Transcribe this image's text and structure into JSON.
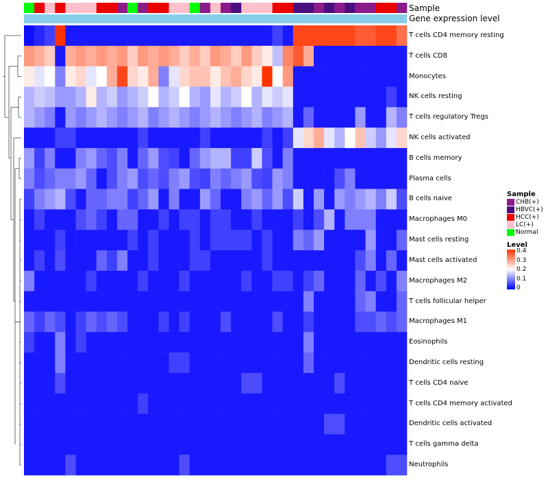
{
  "colors": {
    "CHB": "#8B1A8B",
    "HBVC": "#4B0E7E",
    "HCC": "#EE0000",
    "LC": "#FFC0CB",
    "Normal": "#00FF00",
    "gene_level": "#87CEEB",
    "low": "#0000FF",
    "mid": "#FFFFFF",
    "high": "#FF3300"
  },
  "annotation": {
    "sample_label": "Sample",
    "gene_label": "Gene expression level"
  },
  "legend": {
    "sample_title": "Sample",
    "sample_items": [
      {
        "label": "CHB(+)",
        "key": "CHB"
      },
      {
        "label": "HBVC(+)",
        "key": "HBVC"
      },
      {
        "label": "HCC(+)",
        "key": "HCC"
      },
      {
        "label": "LC(+)",
        "key": "LC"
      },
      {
        "label": "Normal",
        "key": "Normal"
      }
    ],
    "level_title": "Level",
    "level_ticks": [
      "0.4",
      "0.3",
      "0.2",
      "0.1",
      "0"
    ]
  },
  "chart_data": {
    "type": "heatmap",
    "title": "",
    "value_range": [
      0,
      0.4
    ],
    "sample_groups": [
      "Normal",
      "HCC",
      "LC",
      "HCC",
      "LC",
      "LC",
      "LC",
      "HCC",
      "HCC",
      "CHB",
      "Normal",
      "CHB",
      "HCC",
      "HCC",
      "LC",
      "LC",
      "Normal",
      "CHB",
      "LC",
      "CHB",
      "HBVC",
      "LC",
      "LC",
      "LC",
      "HCC",
      "HCC",
      "HBVC",
      "HBVC",
      "CHB",
      "HBVC",
      "CHB",
      "HBVC",
      "CHB",
      "CHB",
      "HCC",
      "HCC",
      "CHB"
    ],
    "rows": [
      "T cells CD4 memory resting",
      "T cells CD8",
      "Monocytes",
      "NK cells resting",
      "T cells regulatory  Tregs",
      "NK cells activated",
      "B cells memory",
      "Plasma cells",
      "B cells naive",
      "Macrophages M0",
      "Mast cells resting",
      "Mast cells activated",
      "Macrophages M2",
      "T cells follicular helper",
      "Macrophages M1",
      "Eosinophils",
      "Dendritic cells resting",
      "T cells CD4 naive",
      "T cells CD4 memory activated",
      "Dendritic cells activated",
      "T cells gamma delta",
      "Neutrophils"
    ],
    "values": [
      [
        0.01,
        0.03,
        0.05,
        0.4,
        0.02,
        0.02,
        0.02,
        0.02,
        0.02,
        0.02,
        0.02,
        0.02,
        0.02,
        0.02,
        0.02,
        0.02,
        0.02,
        0.02,
        0.02,
        0.02,
        0.02,
        0.02,
        0.02,
        0.02,
        0.05,
        0.02,
        0.38,
        0.38,
        0.38,
        0.38,
        0.38,
        0.38,
        0.36,
        0.36,
        0.38,
        0.38,
        0.34
      ],
      [
        0.3,
        0.28,
        0.25,
        0.02,
        0.28,
        0.3,
        0.28,
        0.3,
        0.28,
        0.3,
        0.25,
        0.3,
        0.28,
        0.3,
        0.28,
        0.25,
        0.28,
        0.25,
        0.3,
        0.28,
        0.25,
        0.3,
        0.25,
        0.22,
        0.15,
        0.32,
        0.36,
        0.28,
        0.02,
        0.02,
        0.02,
        0.02,
        0.02,
        0.02,
        0.02,
        0.02,
        0.02
      ],
      [
        0.22,
        0.18,
        0.2,
        0.1,
        0.22,
        0.24,
        0.18,
        0.2,
        0.28,
        0.38,
        0.24,
        0.22,
        0.28,
        0.1,
        0.18,
        0.24,
        0.26,
        0.26,
        0.22,
        0.26,
        0.28,
        0.24,
        0.22,
        0.4,
        0.2,
        0.3,
        0.02,
        0.02,
        0.02,
        0.02,
        0.02,
        0.02,
        0.02,
        0.02,
        0.02,
        0.02,
        0.02
      ],
      [
        0.14,
        0.16,
        0.15,
        0.12,
        0.12,
        0.14,
        0.22,
        0.14,
        0.16,
        0.12,
        0.14,
        0.16,
        0.2,
        0.14,
        0.16,
        0.2,
        0.14,
        0.12,
        0.18,
        0.14,
        0.16,
        0.2,
        0.14,
        0.18,
        0.16,
        0.18,
        0.02,
        0.02,
        0.02,
        0.02,
        0.02,
        0.02,
        0.02,
        0.02,
        0.02,
        0.05,
        0.02
      ],
      [
        0.14,
        0.12,
        0.1,
        0.02,
        0.12,
        0.1,
        0.12,
        0.14,
        0.12,
        0.1,
        0.12,
        0.14,
        0.1,
        0.12,
        0.14,
        0.12,
        0.1,
        0.12,
        0.14,
        0.12,
        0.1,
        0.12,
        0.14,
        0.1,
        0.12,
        0.14,
        0.02,
        0.08,
        0.02,
        0.02,
        0.02,
        0.02,
        0.12,
        0.02,
        0.02,
        0.14,
        0.1
      ],
      [
        0.02,
        0.02,
        0.02,
        0.05,
        0.05,
        0.02,
        0.02,
        0.02,
        0.02,
        0.02,
        0.02,
        0.05,
        0.02,
        0.02,
        0.02,
        0.02,
        0.02,
        0.05,
        0.02,
        0.02,
        0.02,
        0.02,
        0.02,
        0.05,
        0.02,
        0.05,
        0.18,
        0.24,
        0.28,
        0.18,
        0.14,
        0.2,
        0.26,
        0.16,
        0.12,
        0.18,
        0.24
      ],
      [
        0.12,
        0.05,
        0.1,
        0.02,
        0.02,
        0.1,
        0.12,
        0.08,
        0.06,
        0.1,
        0.02,
        0.08,
        0.12,
        0.06,
        0.05,
        0.02,
        0.08,
        0.12,
        0.14,
        0.14,
        0.05,
        0.05,
        0.16,
        0.06,
        0.02,
        0.1,
        0.02,
        0.02,
        0.02,
        0.02,
        0.02,
        0.02,
        0.02,
        0.02,
        0.02,
        0.02,
        0.02
      ],
      [
        0.1,
        0.06,
        0.08,
        0.1,
        0.1,
        0.12,
        0.08,
        0.02,
        0.06,
        0.1,
        0.12,
        0.06,
        0.08,
        0.06,
        0.1,
        0.12,
        0.06,
        0.05,
        0.1,
        0.08,
        0.1,
        0.12,
        0.06,
        0.05,
        0.12,
        0.1,
        0.02,
        0.02,
        0.02,
        0.02,
        0.06,
        0.1,
        0.02,
        0.02,
        0.02,
        0.02,
        0.02
      ],
      [
        0.05,
        0.1,
        0.12,
        0.14,
        0.06,
        0.02,
        0.08,
        0.08,
        0.1,
        0.1,
        0.05,
        0.08,
        0.12,
        0.02,
        0.1,
        0.02,
        0.02,
        0.12,
        0.08,
        0.02,
        0.02,
        0.1,
        0.12,
        0.08,
        0.12,
        0.06,
        0.16,
        0.02,
        0.12,
        0.02,
        0.12,
        0.1,
        0.12,
        0.14,
        0.1,
        0.16,
        0.06
      ],
      [
        0.02,
        0.05,
        0.02,
        0.02,
        0.02,
        0.06,
        0.08,
        0.05,
        0.02,
        0.08,
        0.08,
        0.02,
        0.02,
        0.05,
        0.02,
        0.05,
        0.05,
        0.02,
        0.05,
        0.05,
        0.02,
        0.02,
        0.05,
        0.02,
        0.02,
        0.02,
        0.05,
        0.02,
        0.06,
        0.14,
        0.02,
        0.1,
        0.1,
        0.1,
        0.02,
        0.02,
        0.02
      ],
      [
        0.02,
        0.02,
        0.02,
        0.05,
        0.02,
        0.02,
        0.02,
        0.02,
        0.02,
        0.02,
        0.05,
        0.02,
        0.05,
        0.02,
        0.02,
        0.02,
        0.05,
        0.02,
        0.05,
        0.05,
        0.05,
        0.05,
        0.02,
        0.05,
        0.02,
        0.02,
        0.1,
        0.08,
        0.12,
        0.02,
        0.02,
        0.02,
        0.02,
        0.12,
        0.02,
        0.02,
        0.08
      ],
      [
        0.02,
        0.05,
        0.02,
        0.06,
        0.02,
        0.02,
        0.02,
        0.08,
        0.05,
        0.1,
        0.02,
        0.02,
        0.05,
        0.02,
        0.02,
        0.02,
        0.05,
        0.05,
        0.02,
        0.02,
        0.02,
        0.02,
        0.02,
        0.05,
        0.02,
        0.02,
        0.02,
        0.02,
        0.02,
        0.02,
        0.02,
        0.02,
        0.06,
        0.1,
        0.02,
        0.08,
        0.02
      ],
      [
        0.1,
        0.02,
        0.02,
        0.02,
        0.02,
        0.02,
        0.05,
        0.02,
        0.02,
        0.02,
        0.02,
        0.05,
        0.02,
        0.02,
        0.02,
        0.05,
        0.02,
        0.02,
        0.02,
        0.02,
        0.02,
        0.05,
        0.02,
        0.02,
        0.05,
        0.05,
        0.02,
        0.05,
        0.08,
        0.02,
        0.02,
        0.02,
        0.08,
        0.02,
        0.06,
        0.02,
        0.1
      ],
      [
        0.02,
        0.02,
        0.02,
        0.02,
        0.02,
        0.02,
        0.02,
        0.02,
        0.02,
        0.02,
        0.02,
        0.02,
        0.02,
        0.02,
        0.02,
        0.02,
        0.02,
        0.02,
        0.02,
        0.02,
        0.02,
        0.02,
        0.02,
        0.02,
        0.02,
        0.02,
        0.02,
        0.1,
        0.02,
        0.02,
        0.02,
        0.02,
        0.08,
        0.1,
        0.02,
        0.02,
        0.08
      ],
      [
        0.08,
        0.05,
        0.08,
        0.06,
        0.02,
        0.05,
        0.08,
        0.06,
        0.08,
        0.06,
        0.02,
        0.02,
        0.02,
        0.05,
        0.02,
        0.05,
        0.02,
        0.02,
        0.02,
        0.06,
        0.02,
        0.02,
        0.02,
        0.02,
        0.06,
        0.02,
        0.02,
        0.05,
        0.02,
        0.02,
        0.02,
        0.02,
        0.06,
        0.06,
        0.08,
        0.06,
        0.08
      ],
      [
        0.05,
        0.02,
        0.02,
        0.1,
        0.02,
        0.05,
        0.02,
        0.02,
        0.02,
        0.02,
        0.02,
        0.02,
        0.02,
        0.02,
        0.02,
        0.02,
        0.02,
        0.02,
        0.02,
        0.02,
        0.02,
        0.02,
        0.02,
        0.02,
        0.02,
        0.02,
        0.02,
        0.1,
        0.02,
        0.02,
        0.02,
        0.02,
        0.02,
        0.02,
        0.02,
        0.02,
        0.02
      ],
      [
        0.02,
        0.02,
        0.02,
        0.1,
        0.02,
        0.02,
        0.02,
        0.02,
        0.02,
        0.02,
        0.02,
        0.02,
        0.02,
        0.02,
        0.05,
        0.05,
        0.02,
        0.02,
        0.02,
        0.02,
        0.02,
        0.02,
        0.02,
        0.02,
        0.02,
        0.02,
        0.02,
        0.08,
        0.02,
        0.02,
        0.02,
        0.02,
        0.02,
        0.02,
        0.02,
        0.02,
        0.02
      ],
      [
        0.02,
        0.02,
        0.02,
        0.06,
        0.02,
        0.02,
        0.02,
        0.02,
        0.02,
        0.02,
        0.02,
        0.02,
        0.02,
        0.02,
        0.02,
        0.02,
        0.02,
        0.02,
        0.02,
        0.02,
        0.02,
        0.06,
        0.06,
        0.02,
        0.02,
        0.02,
        0.02,
        0.02,
        0.02,
        0.02,
        0.06,
        0.02,
        0.02,
        0.02,
        0.02,
        0.02,
        0.02
      ],
      [
        0.02,
        0.02,
        0.02,
        0.02,
        0.02,
        0.02,
        0.02,
        0.02,
        0.02,
        0.02,
        0.02,
        0.05,
        0.02,
        0.02,
        0.02,
        0.02,
        0.02,
        0.02,
        0.02,
        0.02,
        0.02,
        0.02,
        0.02,
        0.02,
        0.02,
        0.02,
        0.02,
        0.02,
        0.02,
        0.02,
        0.02,
        0.02,
        0.02,
        0.02,
        0.02,
        0.02,
        0.02
      ],
      [
        0.02,
        0.02,
        0.02,
        0.02,
        0.02,
        0.02,
        0.02,
        0.02,
        0.02,
        0.02,
        0.02,
        0.02,
        0.02,
        0.02,
        0.02,
        0.02,
        0.02,
        0.02,
        0.02,
        0.02,
        0.02,
        0.02,
        0.02,
        0.02,
        0.02,
        0.02,
        0.02,
        0.02,
        0.02,
        0.06,
        0.06,
        0.02,
        0.02,
        0.02,
        0.02,
        0.02,
        0.02
      ],
      [
        0.02,
        0.02,
        0.02,
        0.02,
        0.02,
        0.02,
        0.02,
        0.02,
        0.02,
        0.02,
        0.02,
        0.02,
        0.02,
        0.02,
        0.02,
        0.02,
        0.02,
        0.02,
        0.02,
        0.02,
        0.02,
        0.02,
        0.02,
        0.02,
        0.02,
        0.02,
        0.02,
        0.02,
        0.02,
        0.02,
        0.02,
        0.02,
        0.02,
        0.02,
        0.02,
        0.02,
        0.02
      ],
      [
        0.02,
        0.02,
        0.02,
        0.02,
        0.06,
        0.02,
        0.02,
        0.02,
        0.02,
        0.02,
        0.02,
        0.02,
        0.02,
        0.02,
        0.02,
        0.06,
        0.02,
        0.02,
        0.02,
        0.02,
        0.02,
        0.02,
        0.02,
        0.02,
        0.02,
        0.02,
        0.02,
        0.02,
        0.02,
        0.02,
        0.02,
        0.02,
        0.02,
        0.02,
        0.02,
        0.06,
        0.06
      ]
    ]
  }
}
